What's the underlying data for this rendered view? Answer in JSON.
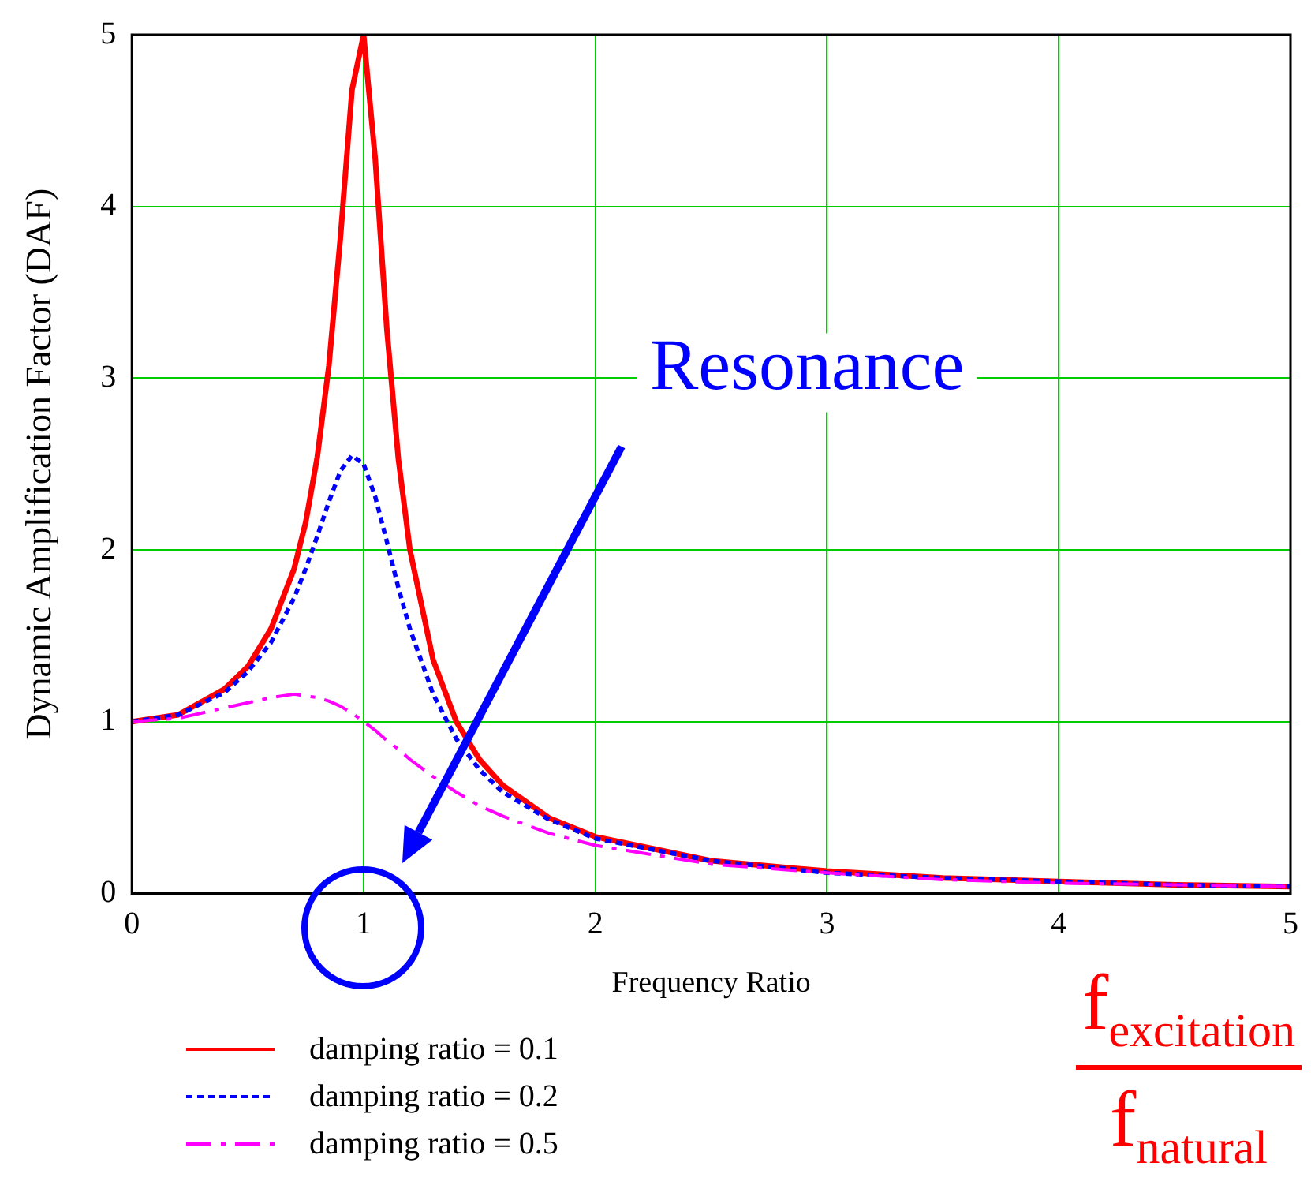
{
  "chart_data": {
    "type": "line",
    "xlabel": "Frequency Ratio",
    "ylabel": "Dynamic Amplification Factor (DAF)",
    "x": [
      0,
      0.2,
      0.4,
      0.5,
      0.6,
      0.7,
      0.75,
      0.8,
      0.85,
      0.9,
      0.95,
      1,
      1.05,
      1.1,
      1.15,
      1.2,
      1.3,
      1.4,
      1.5,
      1.6,
      1.8,
      2,
      2.5,
      3,
      3.5,
      4,
      4.5,
      5
    ],
    "series": [
      {
        "name": "damping ratio = 0.1",
        "color": "#ff0000",
        "line_style": "solid",
        "values": [
          1,
          1.04,
          1.19,
          1.32,
          1.54,
          1.89,
          2.16,
          2.54,
          3.07,
          3.82,
          4.68,
          5,
          4.28,
          3.29,
          2.53,
          2.0,
          1.36,
          1.0,
          0.78,
          0.63,
          0.44,
          0.33,
          0.19,
          0.13,
          0.09,
          0.07,
          0.05,
          0.04
        ]
      },
      {
        "name": "damping ratio = 0.2",
        "color": "#0000ff",
        "line_style": "dotted",
        "values": [
          1,
          1.04,
          1.17,
          1.29,
          1.46,
          1.72,
          1.89,
          2.08,
          2.28,
          2.46,
          2.55,
          2.5,
          2.31,
          2.05,
          1.78,
          1.54,
          1.16,
          0.9,
          0.72,
          0.59,
          0.43,
          0.32,
          0.19,
          0.12,
          0.09,
          0.07,
          0.05,
          0.04
        ]
      },
      {
        "name": "damping ratio = 0.5",
        "color": "#ff00ff",
        "line_style": "dashed",
        "values": [
          1,
          1.02,
          1.08,
          1.11,
          1.14,
          1.16,
          1.15,
          1.14,
          1.12,
          1.09,
          1.05,
          1,
          0.95,
          0.89,
          0.84,
          0.78,
          0.68,
          0.59,
          0.51,
          0.45,
          0.35,
          0.28,
          0.17,
          0.12,
          0.08,
          0.06,
          0.05,
          0.04
        ]
      }
    ],
    "xlim": [
      0,
      5
    ],
    "xticks": [
      0,
      1,
      2,
      3,
      4,
      5
    ],
    "ylim": [
      0,
      5
    ],
    "yticks": [
      0,
      1,
      2,
      3,
      4,
      5
    ],
    "grid": true,
    "legend": "bottom left",
    "marker": "none",
    "annotations": [
      "Resonance",
      "f$_{excitation}$",
      "f$_{natural}$"
    ]
  }
}
